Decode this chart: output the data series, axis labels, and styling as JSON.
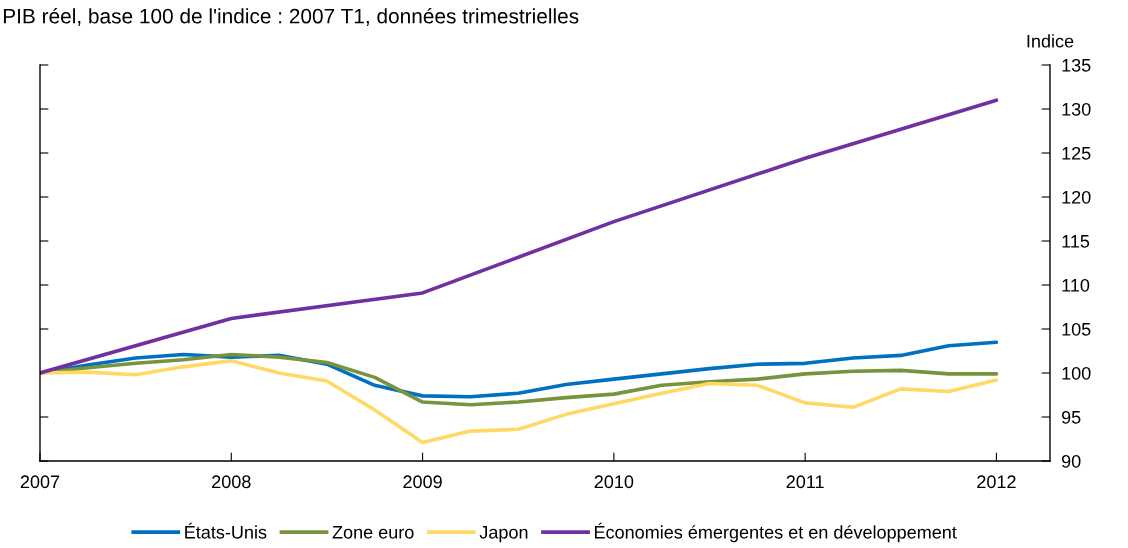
{
  "chart_data": {
    "type": "line",
    "title": "PIB réel, base 100 de l'indice : 2007 T1, données trimestrielles",
    "ylabel": "Indice",
    "x": [
      2007,
      2007.25,
      2007.5,
      2007.75,
      2008,
      2008.25,
      2008.5,
      2008.75,
      2009,
      2009.25,
      2009.5,
      2009.75,
      2010,
      2010.25,
      2010.5,
      2010.75,
      2011,
      2011.25,
      2011.5,
      2011.75,
      2012
    ],
    "series": [
      {
        "name": "États-Unis",
        "color": "#0070c0",
        "values": [
          100.0,
          100.9,
          101.7,
          102.1,
          101.8,
          102.0,
          101.0,
          98.6,
          97.4,
          97.3,
          97.7,
          98.7,
          99.3,
          99.9,
          100.5,
          101.0,
          101.1,
          101.7,
          102.0,
          103.1,
          103.5
        ]
      },
      {
        "name": "Zone euro",
        "color": "#77933c",
        "values": [
          100.0,
          100.6,
          101.1,
          101.5,
          102.1,
          101.8,
          101.2,
          99.5,
          96.7,
          96.4,
          96.7,
          97.2,
          97.6,
          98.6,
          99.0,
          99.3,
          99.9,
          100.2,
          100.3,
          99.9,
          99.9
        ]
      },
      {
        "name": "Japon",
        "color": "#ffd966",
        "values": [
          100.0,
          100.1,
          99.8,
          100.7,
          101.4,
          100.0,
          99.1,
          95.8,
          92.1,
          93.4,
          93.6,
          95.3,
          96.5,
          97.7,
          98.8,
          98.6,
          96.6,
          96.1,
          98.2,
          97.9,
          99.2
        ]
      },
      {
        "name": "Économies émergentes et en développement",
        "color": "#7030a0",
        "x": [
          2007,
          2008,
          2009,
          2010,
          2011,
          2012
        ],
        "values": [
          100.0,
          106.2,
          109.1,
          117.2,
          124.4,
          131.0
        ]
      }
    ],
    "xlim": [
      2007,
      2012.28
    ],
    "xticks": [
      2007,
      2008,
      2009,
      2010,
      2011,
      2012
    ],
    "ylim": [
      90,
      135
    ],
    "yticks": [
      90,
      95,
      100,
      105,
      110,
      115,
      120,
      125,
      130,
      135
    ],
    "grid": false,
    "legend": "bottom",
    "marker": "none",
    "line_style": "solid"
  }
}
